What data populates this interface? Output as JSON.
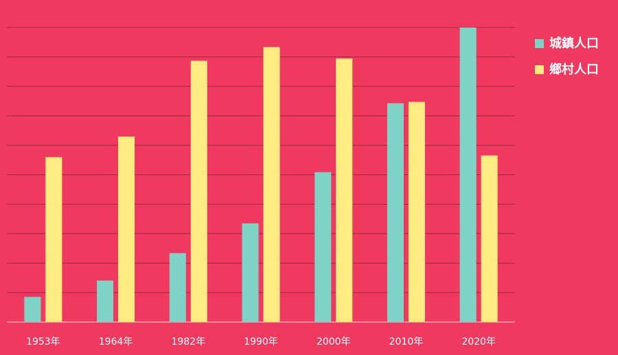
{
  "colors": {
    "background": "#f0395f",
    "grid": "#9a2a40",
    "axis": "#f4a3b3",
    "urban": "#7fd3c6",
    "rural": "#ffeb7f",
    "text": "#ffffff"
  },
  "chart_data": {
    "type": "bar",
    "title": "",
    "xlabel": "",
    "ylabel": "",
    "categories": [
      "1953年",
      "1964年",
      "1982年",
      "1990年",
      "2000年",
      "2010年",
      "2020年"
    ],
    "series": [
      {
        "name": "城鎮人口",
        "values": [
          7.7,
          12.7,
          21.1,
          30.2,
          45.9,
          67,
          90.2
        ]
      },
      {
        "name": "鄉村人口",
        "values": [
          50.5,
          56.8,
          80,
          84.2,
          80.7,
          67.4,
          51
        ]
      }
    ],
    "ylim": [
      0,
      90.2
    ],
    "ytick_count": 10,
    "grid": true,
    "legend_position": "top-right"
  }
}
